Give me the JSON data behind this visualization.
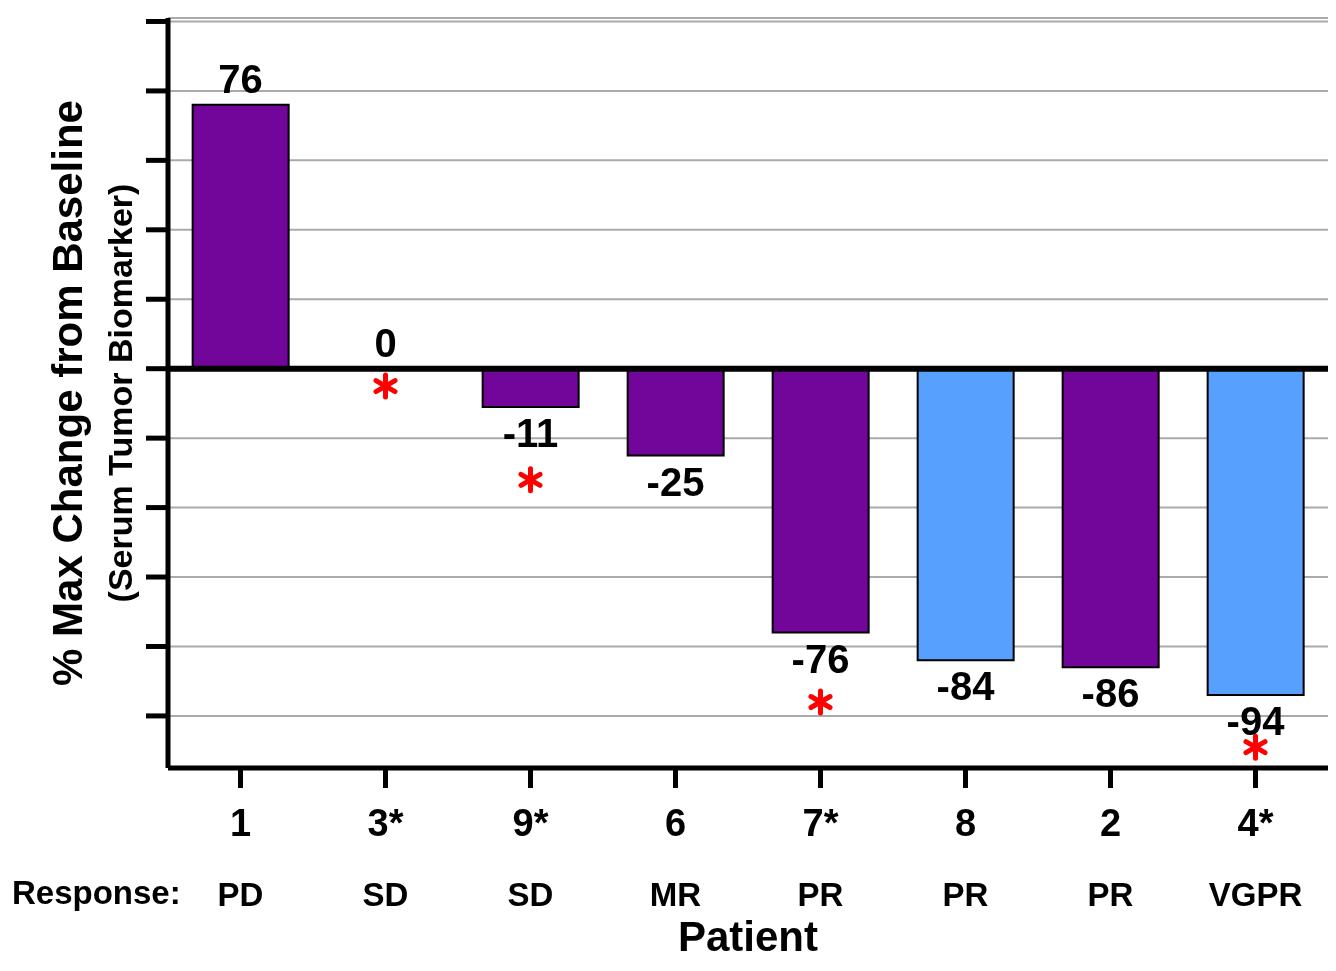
{
  "chart_data": {
    "type": "bar",
    "xlabel": "Patient",
    "ylabel": "% Max Change from Baseline\n(Serum Tumor  Biomarker)",
    "categories": [
      "1",
      "3*",
      "9*",
      "6",
      "7*",
      "8",
      "2",
      "4*"
    ],
    "series": [
      {
        "values": [
          76,
          0,
          -11,
          -25,
          -76,
          -84,
          -86,
          -94
        ],
        "value_labels": [
          "76",
          "0",
          "-11",
          "-25",
          "-76",
          "-84",
          "-86",
          "-94"
        ],
        "colors": [
          "#73069a",
          "#73069a",
          "#73069a",
          "#73069a",
          "#73069a",
          "#57a0fe",
          "#73069a",
          "#57a0fe"
        ]
      },
      {
        "type": "scatter",
        "x": [
          "3*",
          "9*",
          "7*",
          "4*"
        ],
        "values": [
          -5,
          -32,
          -96,
          -109
        ],
        "color": "#ff0000",
        "marker": "cross"
      }
    ],
    "ylim": [
      -115,
      101
    ],
    "yticks": [
      {
        "value": -100,
        "label": null
      },
      {
        "value": -80,
        "label": null
      },
      {
        "value": -60,
        "label": null
      },
      {
        "value": -40,
        "label": null
      },
      {
        "value": -20,
        "label": null
      },
      {
        "value": 0,
        "label": null
      },
      {
        "value": 20,
        "label": null
      },
      {
        "value": 40,
        "label": null
      },
      {
        "value": 60,
        "label": null
      },
      {
        "value": 80,
        "label": null
      },
      {
        "value": 100,
        "label": null
      }
    ],
    "grid": "y",
    "ref_lines": [
      {
        "axis": "y",
        "value": 0,
        "color": "#000000"
      }
    ],
    "annotations": [
      "Response:",
      "PD",
      "SD",
      "SD",
      "MR",
      "PR",
      "PR",
      "PR",
      "VGPR"
    ]
  }
}
